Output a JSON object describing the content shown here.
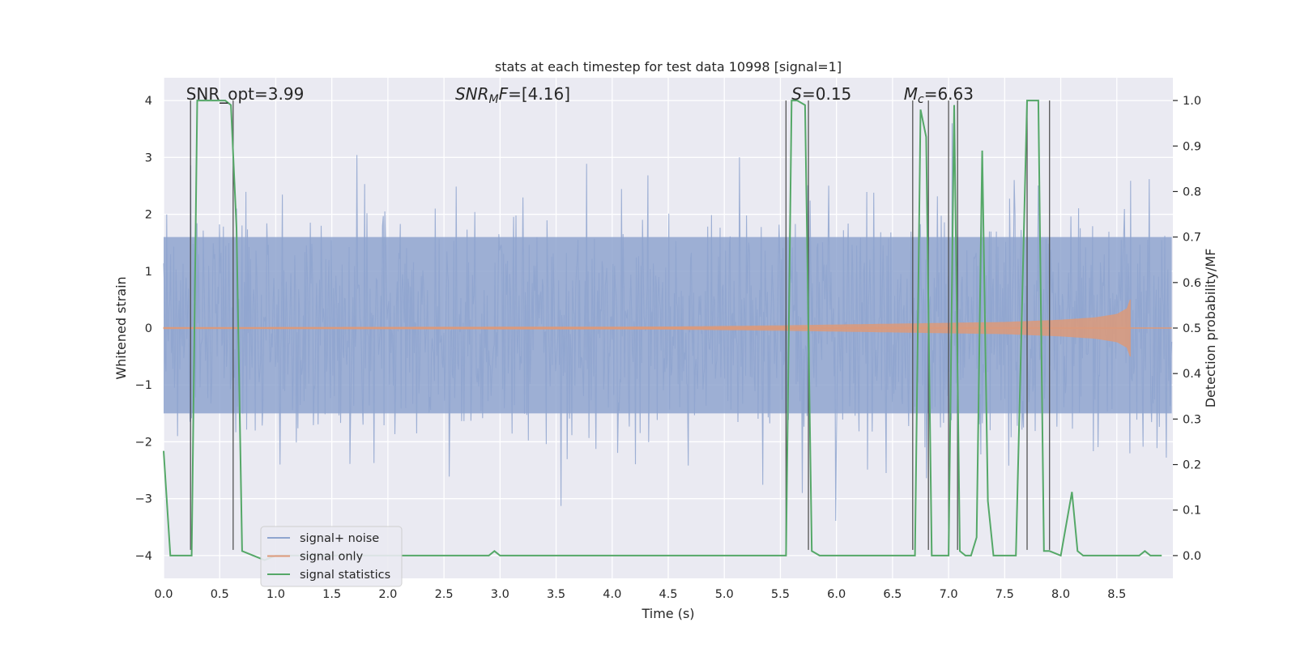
{
  "chart_data": {
    "type": "line",
    "title": "stats at each timestep for test data 10998 [signal=1]",
    "xlabel": "Time (s)",
    "ylabel": "Whitened strain",
    "y2label": "Detection probability/MF",
    "xlim": [
      0.0,
      9.0
    ],
    "ylim": [
      -4.4,
      4.4
    ],
    "y2lim": [
      -0.05,
      1.05
    ],
    "x_ticks": [
      0.0,
      0.5,
      1.0,
      1.5,
      2.0,
      2.5,
      3.0,
      3.5,
      4.0,
      4.5,
      5.0,
      5.5,
      6.0,
      6.5,
      7.0,
      7.5,
      8.0,
      8.5
    ],
    "x_tick_labels": [
      "0.0",
      "0.5",
      "1.0",
      "1.5",
      "2.0",
      "2.5",
      "3.0",
      "3.5",
      "4.0",
      "4.5",
      "5.0",
      "5.5",
      "6.0",
      "6.5",
      "7.0",
      "7.5",
      "8.0",
      "8.5"
    ],
    "y_ticks": [
      -4,
      -3,
      -2,
      -1,
      0,
      1,
      2,
      3,
      4
    ],
    "y_tick_labels": [
      "−4",
      "−3",
      "−2",
      "−1",
      "0",
      "1",
      "2",
      "3",
      "4"
    ],
    "y2_ticks": [
      0.0,
      0.1,
      0.2,
      0.3,
      0.4,
      0.5,
      0.6,
      0.7,
      0.8,
      0.9,
      1.0
    ],
    "y2_tick_labels": [
      "0.0",
      "0.1",
      "0.2",
      "0.3",
      "0.4",
      "0.5",
      "0.6",
      "0.7",
      "0.8",
      "0.9",
      "1.0"
    ],
    "annotations": [
      {
        "text": "SNR_opt=3.99",
        "x": 0.2,
        "y": 4.1
      },
      {
        "text": "SNR_MF=[4.16]",
        "x": 2.6,
        "y": 4.1
      },
      {
        "text": "S=0.15",
        "x": 5.6,
        "y": 4.1
      },
      {
        "text": "M_c=6.63",
        "x": 6.6,
        "y": 4.1
      }
    ],
    "legend": {
      "location": "lower-left",
      "entries": [
        {
          "label": "signal+ noise",
          "color": "#8fa5cf"
        },
        {
          "label": "signal only",
          "color": "#dd9a7a"
        },
        {
          "label": "signal statistics",
          "color": "#55a868"
        }
      ]
    },
    "series": [
      {
        "name": "signal statistics",
        "axis": "right",
        "color": "#55a868",
        "x": [
          0.0,
          0.06,
          0.25,
          0.3,
          0.55,
          0.6,
          0.65,
          0.7,
          0.8,
          0.9,
          1.0,
          2.9,
          2.95,
          3.0,
          3.2,
          5.55,
          5.6,
          5.65,
          5.72,
          5.78,
          5.85,
          5.9,
          6.5,
          6.7,
          6.75,
          6.8,
          6.85,
          6.9,
          6.95,
          7.0,
          7.05,
          7.1,
          7.15,
          7.2,
          7.25,
          7.3,
          7.35,
          7.4,
          7.5,
          7.6,
          7.7,
          7.75,
          7.8,
          7.85,
          7.9,
          8.0,
          8.05,
          8.1,
          8.15,
          8.2,
          8.3,
          8.5,
          8.7,
          8.75,
          8.8,
          8.9
        ],
        "y": [
          0.23,
          0.0,
          0.0,
          1.0,
          1.0,
          0.99,
          0.72,
          0.01,
          0.0,
          -0.01,
          0.0,
          0.0,
          0.01,
          0.0,
          0.0,
          0.0,
          1.0,
          1.0,
          0.99,
          0.01,
          0.0,
          0.0,
          0.0,
          0.0,
          0.98,
          0.92,
          0.0,
          0.0,
          0.0,
          0.0,
          0.99,
          0.01,
          0.0,
          0.0,
          0.04,
          0.89,
          0.12,
          0.0,
          0.0,
          0.0,
          1.0,
          1.0,
          1.0,
          0.01,
          0.01,
          0.0,
          0.07,
          0.14,
          0.01,
          0.0,
          0.0,
          0.0,
          0.0,
          0.01,
          0.0,
          0.0
        ]
      },
      {
        "name": "signal only",
        "axis": "left",
        "color": "#dd9a7a",
        "envelope": {
          "x": [
            0.0,
            4.5,
            5.5,
            6.5,
            7.5,
            8.0,
            8.3,
            8.5,
            8.6,
            8.62
          ],
          "amp": [
            0.01,
            0.02,
            0.04,
            0.07,
            0.1,
            0.14,
            0.18,
            0.24,
            0.35,
            0.5
          ]
        }
      },
      {
        "name": "signal+ noise",
        "axis": "left",
        "color": "#8fa5cf",
        "description": "noise band ~ ±1.6 with spikes up to ~3.6 / down to ~-4.0"
      }
    ],
    "vertical_lines": [
      0.24,
      0.62,
      5.55,
      5.75,
      6.68,
      6.82,
      7.0,
      7.08,
      7.7,
      7.9
    ]
  }
}
